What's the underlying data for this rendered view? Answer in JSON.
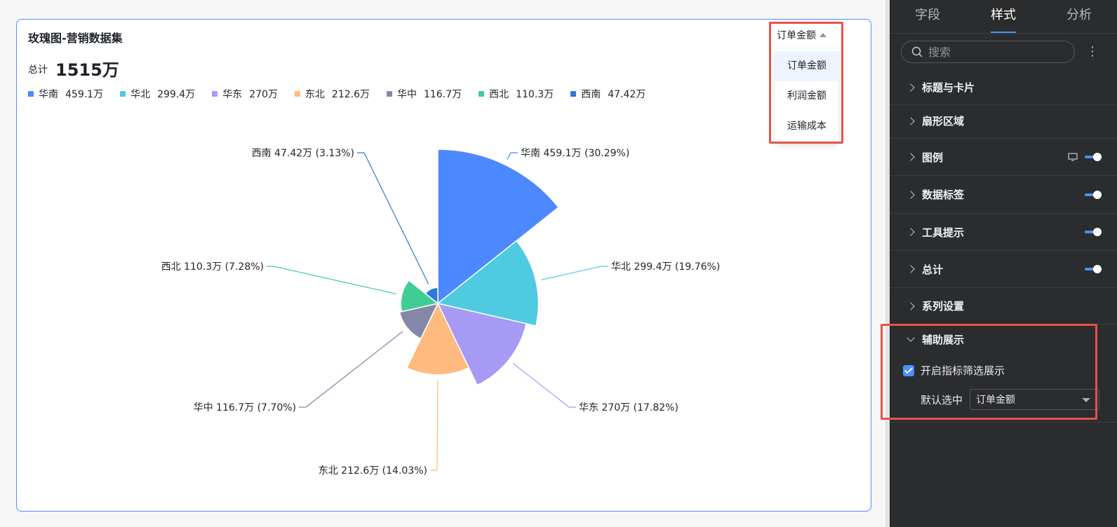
{
  "chart_card": {
    "title": "玫瑰图-营销数据集",
    "total_label": "总计",
    "total_value": "1515万"
  },
  "indicator_dropdown": {
    "selected": "订单金额",
    "options": [
      "订单金额",
      "利润金额",
      "运输成本"
    ]
  },
  "chart_data": {
    "type": "rose",
    "title": "玫瑰图-营销数据集",
    "unit": "万",
    "categories": [
      "华南",
      "华北",
      "华东",
      "东北",
      "华中",
      "西北",
      "西南"
    ],
    "values": [
      459.1,
      299.4,
      270,
      212.6,
      116.7,
      110.3,
      47.42
    ],
    "value_labels": [
      "459.1万",
      "299.4万",
      "270万",
      "212.6万",
      "116.7万",
      "110.3万",
      "47.42万"
    ],
    "percents": [
      "30.29%",
      "19.76%",
      "17.82%",
      "14.03%",
      "7.70%",
      "7.28%",
      "3.13%"
    ],
    "data_labels": [
      "华南 459.1万 (30.29%)",
      "华北 299.4万 (19.76%)",
      "华东 270万 (17.82%)",
      "东北 212.6万 (14.03%)",
      "华中 116.7万 (7.70%)",
      "西北 110.3万 (7.28%)",
      "西南 47.42万 (3.13%)"
    ],
    "colors": [
      "#4c88ff",
      "#4ecbe0",
      "#a79af5",
      "#ffbb7f",
      "#8587a8",
      "#3fcd96",
      "#2f7ad6"
    ],
    "legend_position": "top-left"
  },
  "side_panel": {
    "tabs": [
      {
        "label": "字段",
        "active": false
      },
      {
        "label": "样式",
        "active": true
      },
      {
        "label": "分析",
        "active": false
      }
    ],
    "search_placeholder": "搜索",
    "sections": [
      {
        "label": "标题与卡片",
        "toggle": false,
        "monitor": false
      },
      {
        "label": "扇形区域",
        "toggle": false,
        "monitor": false
      },
      {
        "label": "图例",
        "toggle": true,
        "monitor": true
      },
      {
        "label": "数据标签",
        "toggle": true,
        "monitor": false
      },
      {
        "label": "工具提示",
        "toggle": true,
        "monitor": false
      },
      {
        "label": "总计",
        "toggle": true,
        "monitor": false
      },
      {
        "label": "系列设置",
        "toggle": false,
        "monitor": false
      }
    ],
    "aux": {
      "title": "辅助展示",
      "checkbox_label": "开启指标筛选展示",
      "checked": true,
      "default_label": "默认选中",
      "default_value": "订单金额"
    }
  }
}
